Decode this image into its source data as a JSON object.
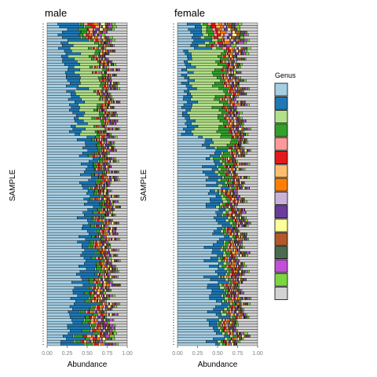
{
  "chart_data": {
    "type": "bar",
    "orientation": "horizontal-stacked",
    "facets": [
      "male",
      "female"
    ],
    "xlabel": "Abundance",
    "ylabel": "SAMPLE",
    "xlim": [
      0,
      1
    ],
    "x_ticks": [
      "0.00",
      "0.25",
      "0.50",
      "0.75",
      "1.00"
    ],
    "legend": {
      "title": "Genus",
      "position": "right",
      "colors": [
        "#a6cee3",
        "#1f78b4",
        "#b2df8a",
        "#33a02c",
        "#fb9a99",
        "#e31a1c",
        "#fdbf6f",
        "#ff7f00",
        "#cab2d6",
        "#6a3d9a",
        "#ffff99",
        "#b15928",
        "#4a6b4d",
        "#c150d6",
        "#7ed542",
        "#d3d3d3"
      ]
    },
    "samples_per_facet": 120,
    "note_values": "Each sample bar is a stacked composition of genus abundances; per-sample values estimated from the figure's broad patterns."
  }
}
